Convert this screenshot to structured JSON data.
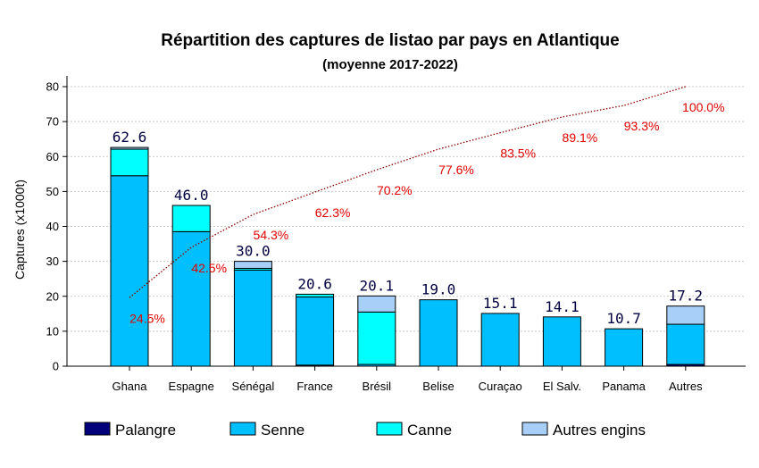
{
  "chart_data": {
    "type": "bar",
    "title": "Répartition des captures de listao par pays en Atlantique",
    "subtitle": "(moyenne 2017-2022)",
    "ylabel": "Captures (x1000t)",
    "ylim": [
      0,
      80
    ],
    "yticks": [
      "0",
      "10",
      "20",
      "30",
      "40",
      "50",
      "60",
      "70",
      "80"
    ],
    "categories": [
      "Ghana",
      "Espagne",
      "Sénégal",
      "France",
      "Brésil",
      "Belise",
      "Curaçao",
      "El Salv.",
      "Panama",
      "Autres"
    ],
    "series": [
      {
        "name": "Palangre",
        "color": "#00007a",
        "values": [
          0,
          0,
          0,
          0.3,
          0,
          0,
          0,
          0,
          0,
          0.5
        ]
      },
      {
        "name": "Senne",
        "color": "#00bfff",
        "values": [
          54.5,
          38.5,
          27.5,
          19.5,
          0.5,
          19.0,
          15.1,
          14.1,
          10.7,
          11.5
        ]
      },
      {
        "name": "Canne",
        "color": "#00ffff",
        "values": [
          7.6,
          7.5,
          0.5,
          0.8,
          15.0,
          0,
          0,
          0,
          0,
          0
        ]
      },
      {
        "name": "Autres engins",
        "color": "#a8cff8",
        "values": [
          0.5,
          0,
          2.0,
          0,
          4.6,
          0,
          0,
          0,
          0,
          5.2
        ]
      }
    ],
    "totals": [
      "62.6",
      "46.0",
      "30.0",
      "20.6",
      "20.1",
      "19.0",
      "15.1",
      "14.1",
      "10.7",
      "17.2"
    ],
    "cumulative": {
      "color": "#8b0000",
      "values": [
        19.6,
        34.0,
        43.4,
        49.8,
        56.2,
        62.1,
        66.8,
        71.3,
        74.6,
        80.0
      ],
      "labels": [
        "24.5%",
        "42.5%",
        "54.3%",
        "62.3%",
        "70.2%",
        "77.6%",
        "83.5%",
        "89.1%",
        "93.3%",
        "100.0%"
      ]
    },
    "grid": true,
    "legend_position": "bottom"
  }
}
